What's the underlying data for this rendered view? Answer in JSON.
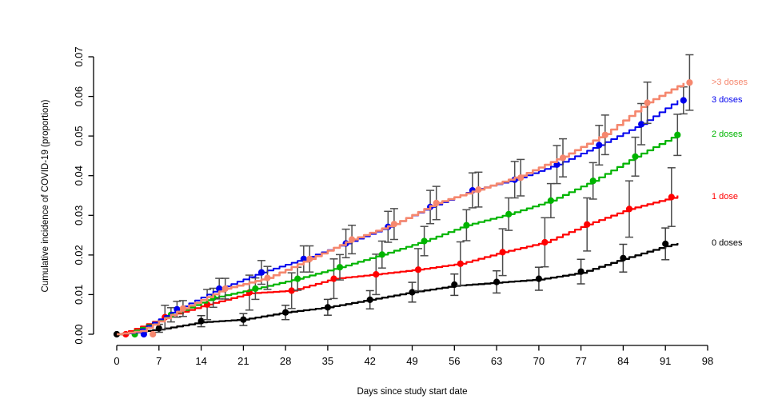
{
  "chart_data": {
    "type": "line",
    "subtype": "step-cumulative-incidence",
    "title": "",
    "xlabel": "Days since study start date",
    "ylabel": "Cumulative incidence of COVID-19 (proportion)",
    "xlim": [
      0,
      98
    ],
    "ylim": [
      0,
      0.07
    ],
    "grid": false,
    "legend_position": "right-margin",
    "x_ticks": [
      0,
      7,
      14,
      21,
      28,
      35,
      42,
      49,
      56,
      63,
      70,
      77,
      84,
      91,
      98
    ],
    "y_ticks": [
      {
        "value": 0.0,
        "label": "0.00"
      },
      {
        "value": 0.01,
        "label": "0.01"
      },
      {
        "value": 0.02,
        "label": "0.02"
      },
      {
        "value": 0.03,
        "label": "0.03"
      },
      {
        "value": 0.04,
        "label": "0.04"
      },
      {
        "value": 0.05,
        "label": "0.05"
      },
      {
        "value": 0.06,
        "label": "0.06"
      },
      {
        "value": 0.07,
        "label": "0.07"
      }
    ],
    "legend_order": [
      4,
      3,
      2,
      1,
      0
    ],
    "series": [
      {
        "name": "0 doses",
        "color": "#000000",
        "err_color": "#3f3f3f",
        "lw": 2.3,
        "curve": [
          [
            0,
            0
          ],
          [
            7,
            0.0012
          ],
          [
            14,
            0.003
          ],
          [
            21,
            0.0037
          ],
          [
            28,
            0.0055
          ],
          [
            35,
            0.0068
          ],
          [
            42,
            0.0087
          ],
          [
            49,
            0.0106
          ],
          [
            56,
            0.0122
          ],
          [
            63,
            0.013
          ],
          [
            70,
            0.0138
          ],
          [
            77,
            0.0155
          ],
          [
            84,
            0.019
          ],
          [
            91,
            0.0222
          ],
          [
            93,
            0.023
          ]
        ],
        "markers": [
          {
            "x": 0,
            "y": 0
          },
          {
            "x": 7,
            "y": 0.0015,
            "lo": 0.0005,
            "hi": 0.0025
          },
          {
            "x": 14,
            "y": 0.0033,
            "lo": 0.0019,
            "hi": 0.0047
          },
          {
            "x": 21,
            "y": 0.0037,
            "lo": 0.0022,
            "hi": 0.0052
          },
          {
            "x": 28,
            "y": 0.0055,
            "lo": 0.0037,
            "hi": 0.0073
          },
          {
            "x": 35,
            "y": 0.0068,
            "lo": 0.0048,
            "hi": 0.0088
          },
          {
            "x": 42,
            "y": 0.0087,
            "lo": 0.0064,
            "hi": 0.011
          },
          {
            "x": 49,
            "y": 0.0106,
            "lo": 0.0081,
            "hi": 0.0131
          },
          {
            "x": 56,
            "y": 0.0125,
            "lo": 0.0098,
            "hi": 0.0152
          },
          {
            "x": 63,
            "y": 0.0132,
            "lo": 0.0104,
            "hi": 0.016
          },
          {
            "x": 70,
            "y": 0.014,
            "lo": 0.0111,
            "hi": 0.0169
          },
          {
            "x": 77,
            "y": 0.0158,
            "lo": 0.0127,
            "hi": 0.0189
          },
          {
            "x": 84,
            "y": 0.0192,
            "lo": 0.0157,
            "hi": 0.0227
          },
          {
            "x": 91,
            "y": 0.0228,
            "lo": 0.0188,
            "hi": 0.0268
          }
        ]
      },
      {
        "name": "1 dose",
        "color": "#ff0000",
        "err_color": "#4d4d4d",
        "lw": 2.2,
        "curve": [
          [
            0,
            0
          ],
          [
            1,
            0.0002
          ],
          [
            8,
            0.0043
          ],
          [
            15,
            0.0075
          ],
          [
            22,
            0.0103
          ],
          [
            29,
            0.011
          ],
          [
            36,
            0.014
          ],
          [
            43,
            0.0151
          ],
          [
            50,
            0.0163
          ],
          [
            57,
            0.0178
          ],
          [
            64,
            0.0207
          ],
          [
            71,
            0.0232
          ],
          [
            78,
            0.0277
          ],
          [
            85,
            0.0316
          ],
          [
            92,
            0.0344
          ],
          [
            93,
            0.035
          ]
        ],
        "markers": [
          {
            "x": 1.5,
            "y": 0
          },
          {
            "x": 8,
            "y": 0.0043,
            "lo": 0.0013,
            "hi": 0.0073
          },
          {
            "x": 15,
            "y": 0.0075,
            "lo": 0.0037,
            "hi": 0.0113
          },
          {
            "x": 22,
            "y": 0.0105,
            "lo": 0.0061,
            "hi": 0.0149
          },
          {
            "x": 29,
            "y": 0.011,
            "lo": 0.0065,
            "hi": 0.0155
          },
          {
            "x": 36,
            "y": 0.014,
            "lo": 0.009,
            "hi": 0.019
          },
          {
            "x": 43,
            "y": 0.0151,
            "lo": 0.01,
            "hi": 0.0202
          },
          {
            "x": 50,
            "y": 0.0163,
            "lo": 0.011,
            "hi": 0.0216
          },
          {
            "x": 57,
            "y": 0.0178,
            "lo": 0.0123,
            "hi": 0.0233
          },
          {
            "x": 64,
            "y": 0.0207,
            "lo": 0.0148,
            "hi": 0.0266
          },
          {
            "x": 71,
            "y": 0.0232,
            "lo": 0.017,
            "hi": 0.0294
          },
          {
            "x": 78,
            "y": 0.0277,
            "lo": 0.021,
            "hi": 0.0344
          },
          {
            "x": 85,
            "y": 0.0316,
            "lo": 0.0245,
            "hi": 0.0387
          },
          {
            "x": 92,
            "y": 0.0346,
            "lo": 0.0272,
            "hi": 0.042
          }
        ]
      },
      {
        "name": "2 doses",
        "color": "#00b400",
        "err_color": "#4d4d4d",
        "lw": 2.2,
        "curve": [
          [
            0,
            0
          ],
          [
            2,
            0.0003
          ],
          [
            9,
            0.0049
          ],
          [
            16,
            0.0092
          ],
          [
            23,
            0.0115
          ],
          [
            30,
            0.014
          ],
          [
            37,
            0.0169
          ],
          [
            44,
            0.0201
          ],
          [
            51,
            0.0235
          ],
          [
            58,
            0.0275
          ],
          [
            65,
            0.0303
          ],
          [
            72,
            0.0337
          ],
          [
            79,
            0.0387
          ],
          [
            86,
            0.0448
          ],
          [
            93,
            0.0504
          ]
        ],
        "markers": [
          {
            "x": 3,
            "y": 0
          },
          {
            "x": 9,
            "y": 0.0049,
            "lo": 0.0031,
            "hi": 0.0067
          },
          {
            "x": 16,
            "y": 0.0092,
            "lo": 0.0068,
            "hi": 0.0116
          },
          {
            "x": 23,
            "y": 0.0115,
            "lo": 0.0088,
            "hi": 0.0142
          },
          {
            "x": 30,
            "y": 0.014,
            "lo": 0.0111,
            "hi": 0.0169
          },
          {
            "x": 37,
            "y": 0.0169,
            "lo": 0.0137,
            "hi": 0.0201
          },
          {
            "x": 44,
            "y": 0.0201,
            "lo": 0.0167,
            "hi": 0.0235
          },
          {
            "x": 51,
            "y": 0.0235,
            "lo": 0.0198,
            "hi": 0.0272
          },
          {
            "x": 58,
            "y": 0.0275,
            "lo": 0.0236,
            "hi": 0.0314
          },
          {
            "x": 65,
            "y": 0.0303,
            "lo": 0.0262,
            "hi": 0.0344
          },
          {
            "x": 72,
            "y": 0.0337,
            "lo": 0.0294,
            "hi": 0.038
          },
          {
            "x": 79,
            "y": 0.0387,
            "lo": 0.0341,
            "hi": 0.0433
          },
          {
            "x": 86,
            "y": 0.0448,
            "lo": 0.0399,
            "hi": 0.0497
          },
          {
            "x": 93,
            "y": 0.0503,
            "lo": 0.0451,
            "hi": 0.0555
          }
        ]
      },
      {
        "name": "3 doses",
        "color": "#0000ee",
        "err_color": "#4d4d4d",
        "lw": 2.0,
        "curve": [
          [
            0,
            0
          ],
          [
            3,
            0.0004
          ],
          [
            10,
            0.0063
          ],
          [
            17,
            0.0115
          ],
          [
            24,
            0.0156
          ],
          [
            31,
            0.019
          ],
          [
            38,
            0.0229
          ],
          [
            45,
            0.0271
          ],
          [
            52,
            0.0321
          ],
          [
            59,
            0.0363
          ],
          [
            66,
            0.039
          ],
          [
            73,
            0.0428
          ],
          [
            80,
            0.0477
          ],
          [
            87,
            0.053
          ],
          [
            93,
            0.059
          ]
        ],
        "markers": [
          {
            "x": 4.5,
            "y": 0
          },
          {
            "x": 10,
            "y": 0.0063,
            "lo": 0.0043,
            "hi": 0.0083
          },
          {
            "x": 17,
            "y": 0.0115,
            "lo": 0.0089,
            "hi": 0.0141
          },
          {
            "x": 24,
            "y": 0.0156,
            "lo": 0.0126,
            "hi": 0.0186
          },
          {
            "x": 31,
            "y": 0.019,
            "lo": 0.0157,
            "hi": 0.0223
          },
          {
            "x": 38,
            "y": 0.0229,
            "lo": 0.0193,
            "hi": 0.0265
          },
          {
            "x": 45,
            "y": 0.0271,
            "lo": 0.0232,
            "hi": 0.031
          },
          {
            "x": 52,
            "y": 0.0321,
            "lo": 0.0279,
            "hi": 0.0363
          },
          {
            "x": 59,
            "y": 0.0363,
            "lo": 0.0319,
            "hi": 0.0407
          },
          {
            "x": 66,
            "y": 0.039,
            "lo": 0.0344,
            "hi": 0.0436
          },
          {
            "x": 73,
            "y": 0.0428,
            "lo": 0.038,
            "hi": 0.0476
          },
          {
            "x": 80,
            "y": 0.0477,
            "lo": 0.0427,
            "hi": 0.0527
          },
          {
            "x": 87,
            "y": 0.053,
            "lo": 0.0478,
            "hi": 0.0582
          },
          {
            "x": 94,
            "y": 0.059,
            "lo": 0.0556,
            "hi": 0.0624
          }
        ]
      },
      {
        "name": ">3 doses",
        "color": "#f5876e",
        "err_color": "#4d4d4d",
        "lw": 2.6,
        "curve": [
          [
            0,
            0
          ],
          [
            4,
            0.0008
          ],
          [
            11,
            0.0065
          ],
          [
            18,
            0.0115
          ],
          [
            25,
            0.0142
          ],
          [
            32,
            0.019
          ],
          [
            39,
            0.0239
          ],
          [
            46,
            0.0278
          ],
          [
            53,
            0.0331
          ],
          [
            60,
            0.0365
          ],
          [
            67,
            0.04
          ],
          [
            74,
            0.0448
          ],
          [
            81,
            0.0505
          ],
          [
            88,
            0.0585
          ],
          [
            94,
            0.0634
          ]
        ],
        "markers": [
          {
            "x": 6,
            "y": 0
          },
          {
            "x": 11,
            "y": 0.0065,
            "lo": 0.0045,
            "hi": 0.0085
          },
          {
            "x": 18,
            "y": 0.0115,
            "lo": 0.0089,
            "hi": 0.0141
          },
          {
            "x": 25,
            "y": 0.0142,
            "lo": 0.0113,
            "hi": 0.0171
          },
          {
            "x": 32,
            "y": 0.019,
            "lo": 0.0157,
            "hi": 0.0223
          },
          {
            "x": 39,
            "y": 0.0239,
            "lo": 0.0203,
            "hi": 0.0275
          },
          {
            "x": 46,
            "y": 0.0278,
            "lo": 0.0239,
            "hi": 0.0317
          },
          {
            "x": 53,
            "y": 0.0331,
            "lo": 0.0289,
            "hi": 0.0373
          },
          {
            "x": 60,
            "y": 0.0365,
            "lo": 0.0321,
            "hi": 0.0409
          },
          {
            "x": 67,
            "y": 0.0395,
            "lo": 0.0349,
            "hi": 0.0441
          },
          {
            "x": 74,
            "y": 0.0445,
            "lo": 0.0397,
            "hi": 0.0493
          },
          {
            "x": 81,
            "y": 0.0503,
            "lo": 0.0453,
            "hi": 0.0553
          },
          {
            "x": 88,
            "y": 0.0584,
            "lo": 0.0532,
            "hi": 0.0636
          },
          {
            "x": 95,
            "y": 0.0635,
            "lo": 0.0565,
            "hi": 0.0705
          }
        ]
      }
    ]
  }
}
